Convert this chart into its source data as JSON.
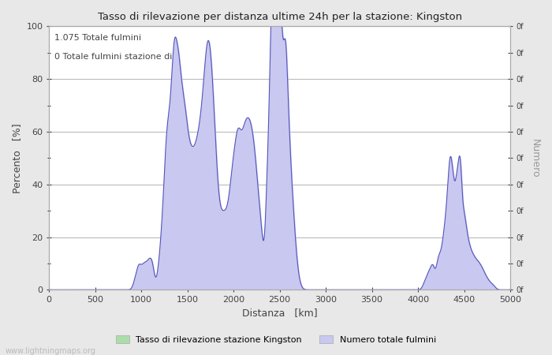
{
  "title": "Tasso di rilevazione per distanza ultime 24h per la stazione: Kingston",
  "xlabel": "Distanza   [km]",
  "ylabel_left": "Percento   [%]",
  "ylabel_right": "Numero",
  "annotation_line1": "1.075 Totale fulmini",
  "annotation_line2": "0 Totale fulmini stazione di",
  "legend_label1": "Tasso di rilevazione stazione Kingston",
  "legend_label2": "Numero totale fulmini",
  "watermark": "www.lightningmaps.org",
  "xlim": [
    0,
    5000
  ],
  "ylim": [
    0,
    100
  ],
  "xticks": [
    0,
    500,
    1000,
    1500,
    2000,
    2500,
    3000,
    3500,
    4000,
    4500,
    5000
  ],
  "yticks_left": [
    0,
    20,
    40,
    60,
    80,
    100
  ],
  "right_tick_values": [
    0,
    10,
    20,
    30,
    40,
    50,
    60,
    70,
    80,
    90,
    100
  ],
  "right_tick_labels": [
    "0f",
    "0f",
    "0f",
    "0f",
    "0f",
    "0f",
    "0f",
    "0f",
    "0f",
    "0f",
    "0f"
  ],
  "bg_color": "#e8e8e8",
  "plot_bg_color": "#ffffff",
  "line_color": "#5555bb",
  "fill_blue_color": "#c8c8f0",
  "fill_green_color": "#aaddaa",
  "grid_color": "#bbbbbb",
  "text_color": "#444444",
  "right_axis_color": "#999999",
  "spine_color": "#aaaaaa"
}
